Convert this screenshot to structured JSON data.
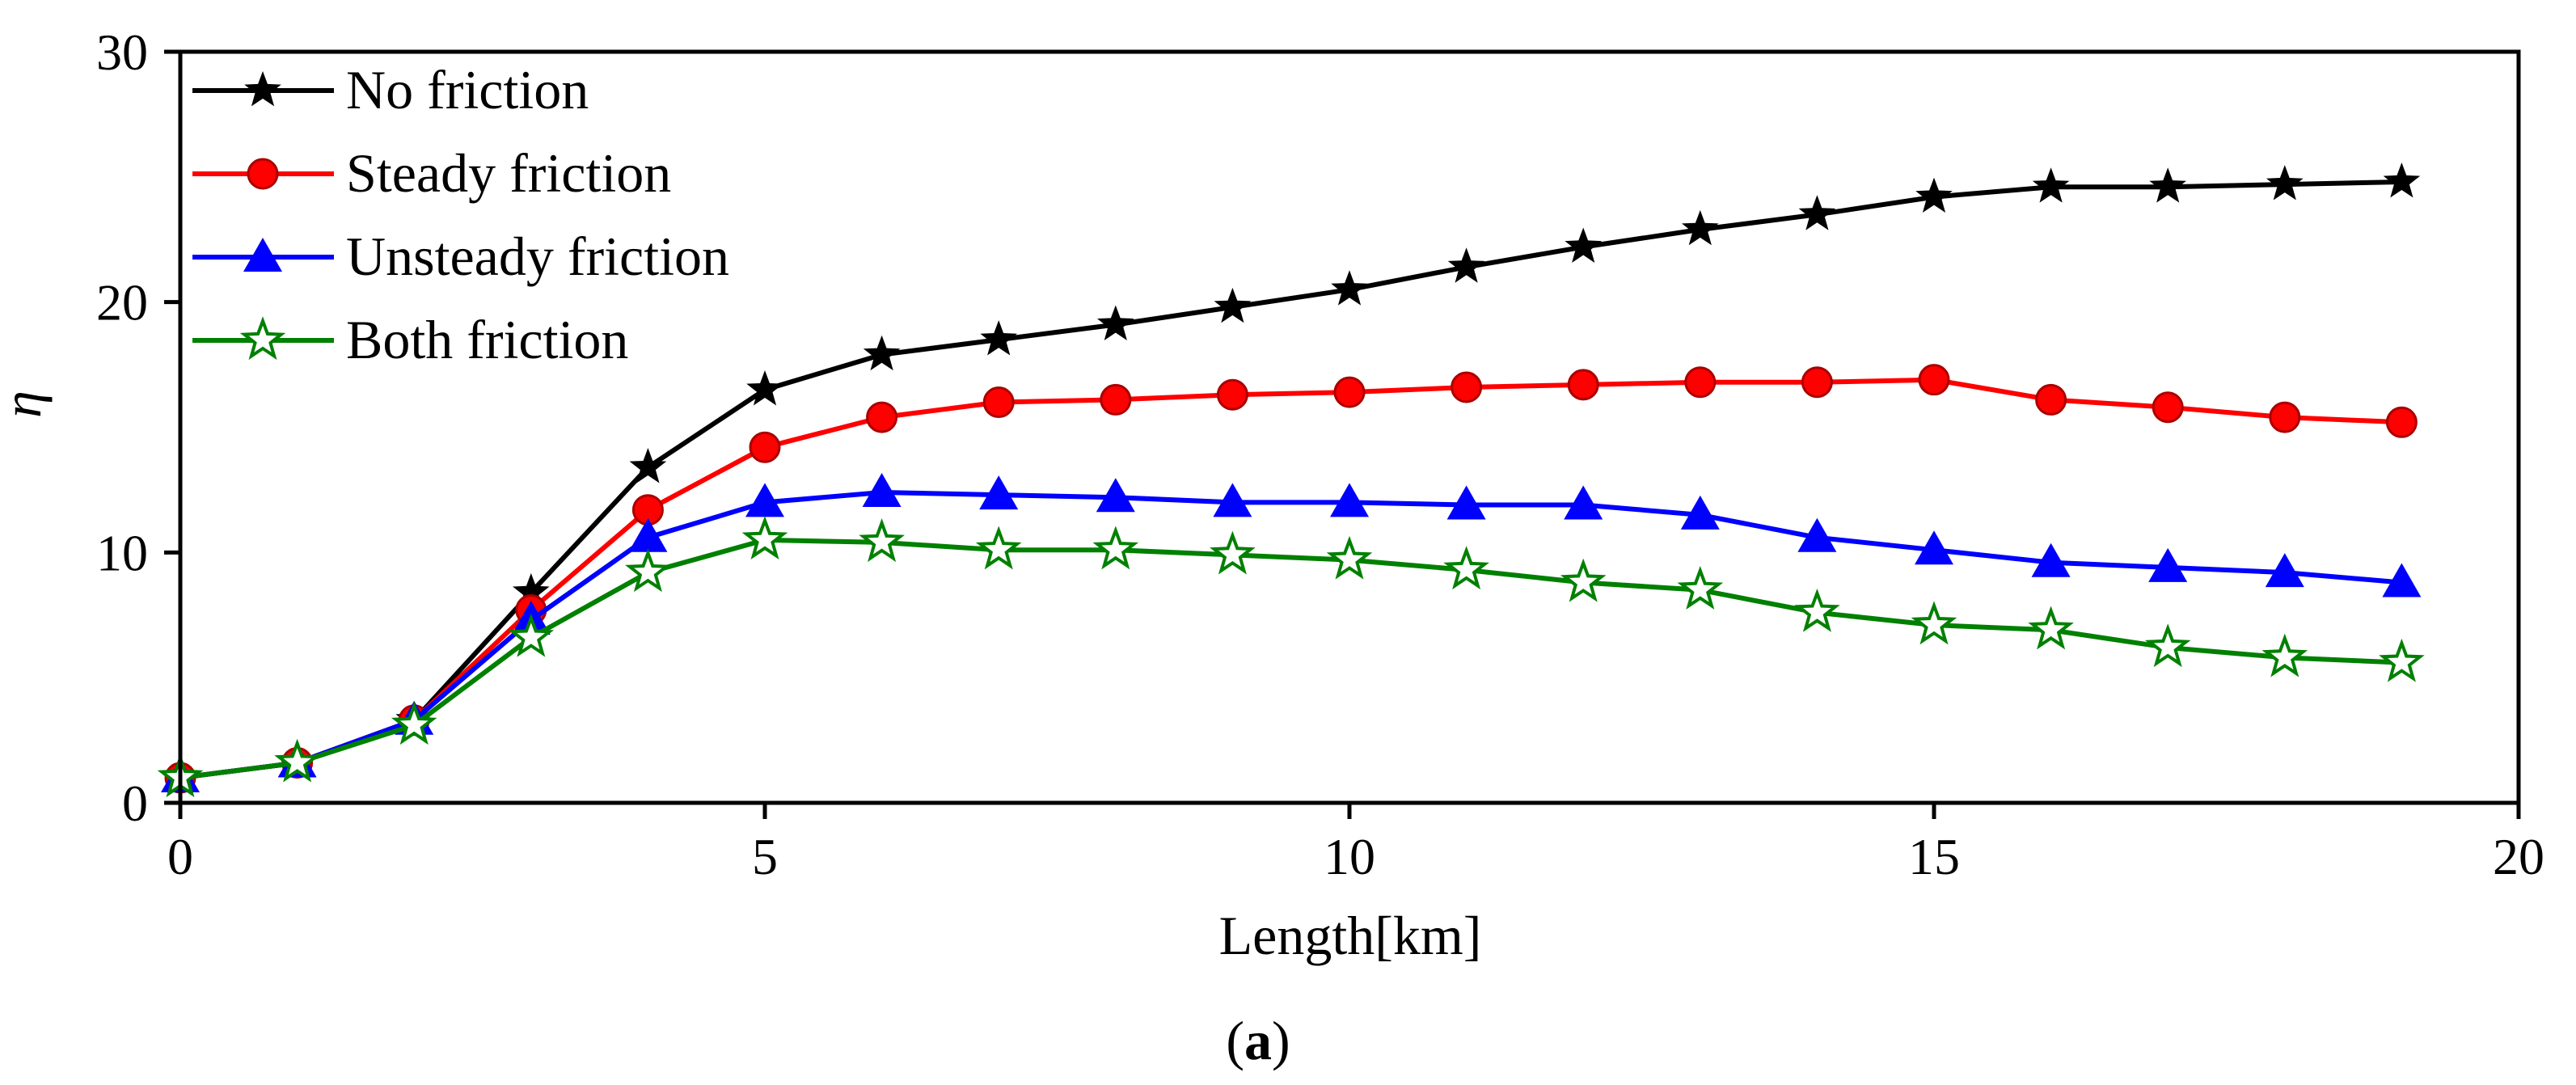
{
  "chart_data": {
    "type": "line",
    "title": "",
    "xlabel": "Length[km]",
    "ylabel": "η",
    "caption": {
      "open": "(",
      "label": "a",
      "close": ")"
    },
    "xlim": [
      0,
      20
    ],
    "ylim": [
      0,
      30
    ],
    "xticks": [
      0,
      5,
      10,
      15,
      20
    ],
    "yticks": [
      0,
      10,
      20,
      30
    ],
    "legend_position": "top-left",
    "grid": false,
    "x": [
      0,
      1,
      2,
      3,
      4,
      5,
      6,
      7,
      8,
      9,
      10,
      11,
      12,
      13,
      14,
      15,
      16,
      17,
      18,
      19
    ],
    "series": [
      {
        "name": "No friction",
        "color": "#000000",
        "marker": "star-filled",
        "values": [
          1.0,
          1.6,
          3.3,
          8.4,
          13.4,
          16.5,
          17.9,
          18.5,
          19.1,
          19.8,
          20.5,
          21.4,
          22.2,
          22.9,
          23.5,
          24.2,
          24.6,
          24.6,
          24.7,
          24.8
        ]
      },
      {
        "name": "Steady friction",
        "color": "#ff0000",
        "marker": "circle",
        "values": [
          1.0,
          1.6,
          3.3,
          7.7,
          11.7,
          14.2,
          15.4,
          16.0,
          16.1,
          16.3,
          16.4,
          16.6,
          16.7,
          16.8,
          16.8,
          16.9,
          16.1,
          15.8,
          15.4,
          15.2
        ]
      },
      {
        "name": "Unsteady friction",
        "color": "#0000ff",
        "marker": "triangle",
        "values": [
          1.0,
          1.6,
          3.3,
          7.3,
          10.6,
          12.0,
          12.4,
          12.3,
          12.2,
          12.0,
          12.0,
          11.9,
          11.9,
          11.5,
          10.6,
          10.1,
          9.6,
          9.4,
          9.2,
          8.8
        ]
      },
      {
        "name": "Both friction",
        "color": "#008000",
        "marker": "star-open",
        "values": [
          1.0,
          1.6,
          3.1,
          6.6,
          9.2,
          10.5,
          10.4,
          10.1,
          10.1,
          9.9,
          9.7,
          9.3,
          8.8,
          8.5,
          7.6,
          7.1,
          6.9,
          6.2,
          5.8,
          5.6
        ]
      }
    ]
  }
}
